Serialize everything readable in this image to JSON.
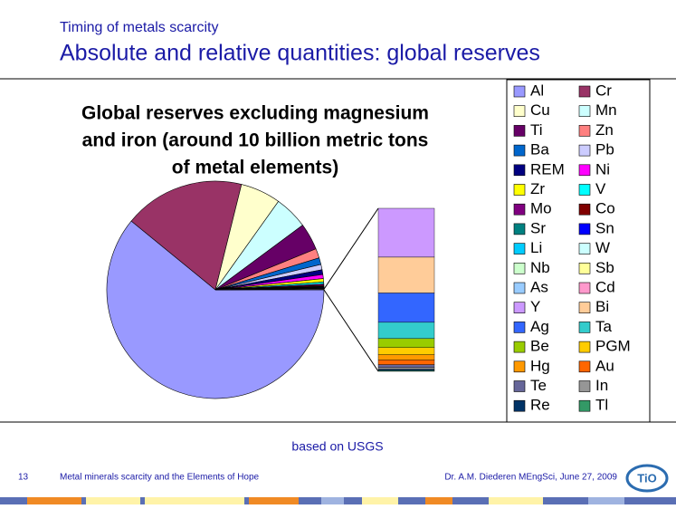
{
  "header": {
    "kicker": "Timing of metals scarcity",
    "title": "Absolute and relative quantities: global reserves"
  },
  "chart_data": {
    "type": "pie",
    "title": [
      "Global reserves excluding magnesium",
      "and iron (around 10 billion metric tons",
      "of metal elements)"
    ],
    "categories": [
      "Al",
      "Cr",
      "Cu",
      "Mn",
      "Ti",
      "Zn",
      "Ba",
      "Pb",
      "REM",
      "Ni",
      "Zr",
      "V",
      "Mo",
      "Co",
      "Sr",
      "Sn",
      "Li",
      "W",
      "Nb",
      "Sb",
      "As",
      "Cd",
      "Y",
      "Bi",
      "Ag",
      "Ta",
      "Be",
      "PGM",
      "Hg",
      "Au",
      "Te",
      "In",
      "Re",
      "Tl"
    ],
    "values": [
      61,
      18,
      6,
      5,
      4,
      1.4,
      1,
      0.8,
      0.7,
      0.6,
      0.5,
      0.3,
      0.2,
      0.15,
      0.1,
      0.1,
      0.05,
      0.05,
      0.05,
      0.03,
      0.02,
      0.01,
      0.03,
      0.022,
      0.018,
      0.01,
      0.0055,
      0.0044,
      0.0033,
      0.0028,
      0.0017,
      0.0011,
      0.0008,
      0.0005
    ],
    "colors": [
      "#9999ff",
      "#993366",
      "#ffffcc",
      "#ccffff",
      "#660066",
      "#ff8080",
      "#0066cc",
      "#ccccff",
      "#000080",
      "#ff00ff",
      "#ffff00",
      "#00ffff",
      "#800080",
      "#800000",
      "#008080",
      "#0000ff",
      "#00ccff",
      "#ccffff",
      "#ccffcc",
      "#ffff99",
      "#99ccff",
      "#ff99cc",
      "#cc99ff",
      "#ffcc99",
      "#3366ff",
      "#33cccc",
      "#99cc00",
      "#ffcc00",
      "#ff9900",
      "#ff6600",
      "#666699",
      "#969696",
      "#003366",
      "#339966"
    ],
    "split_category": "Y"
  },
  "footer": {
    "source": "based on USGS",
    "page": "13",
    "left": "Metal minerals scarcity and the Elements of Hope",
    "right": "Dr. A.M. Diederen MEngSci, June 27, 2009"
  }
}
